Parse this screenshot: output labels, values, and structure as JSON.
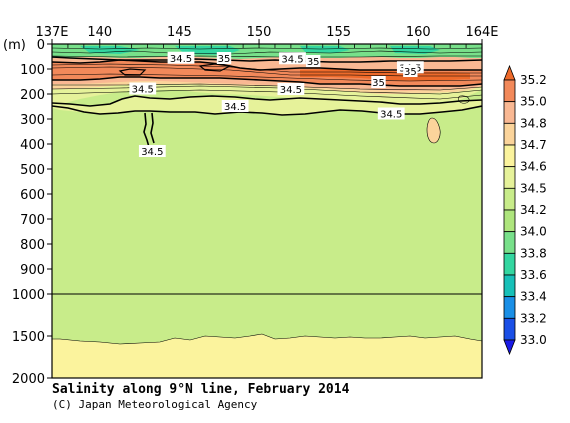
{
  "chart_data": {
    "type": "heatmap",
    "title": "Salinity along 9°N line, February 2014",
    "credit": "(C) Japan Meteorological Agency",
    "x_axis": {
      "range": [
        137,
        164
      ],
      "ticks": [
        {
          "value": 137,
          "label": "137E"
        },
        {
          "value": 140,
          "label": "140"
        },
        {
          "value": 145,
          "label": "145"
        },
        {
          "value": 150,
          "label": "150"
        },
        {
          "value": 155,
          "label": "155"
        },
        {
          "value": 160,
          "label": "160"
        },
        {
          "value": 164,
          "label": "164E"
        }
      ]
    },
    "y_axis": {
      "unit_label": "(m)",
      "range": [
        0,
        2000
      ],
      "break_at": 1000,
      "ticks": [
        {
          "value": 0,
          "label": "0"
        },
        {
          "value": 100,
          "label": "100"
        },
        {
          "value": 200,
          "label": "200"
        },
        {
          "value": 300,
          "label": "300"
        },
        {
          "value": 400,
          "label": "400"
        },
        {
          "value": 500,
          "label": "500"
        },
        {
          "value": 600,
          "label": "600"
        },
        {
          "value": 700,
          "label": "700"
        },
        {
          "value": 800,
          "label": "800"
        },
        {
          "value": 900,
          "label": "900"
        },
        {
          "value": 1000,
          "label": "1000"
        },
        {
          "value": 1500,
          "label": "1500"
        },
        {
          "value": 2000,
          "label": "2000"
        }
      ]
    },
    "colorbar": {
      "levels": [
        "35.2",
        "35.0",
        "34.8",
        "34.7",
        "34.6",
        "34.5",
        "34.2",
        "34.0",
        "33.8",
        "33.6",
        "33.4",
        "33.2",
        "33.0"
      ],
      "colors": [
        "#ee6a2a",
        "#f2895a",
        "#f9b893",
        "#fbd49b",
        "#fbf39d",
        "#e6f29a",
        "#c8ec8a",
        "#aee57d",
        "#78e08a",
        "#33d6a0",
        "#17c0b8",
        "#1a8fe6",
        "#1a4fe6",
        "#1a1ae6"
      ]
    },
    "contour_labels": [
      {
        "text": "34.5",
        "x": 145.1,
        "depth": 55
      },
      {
        "text": "35",
        "x": 147.8,
        "depth": 56
      },
      {
        "text": "34.5",
        "x": 152.1,
        "depth": 57
      },
      {
        "text": "35",
        "x": 153.4,
        "depth": 68
      },
      {
        "text": "34.5",
        "x": 159.5,
        "depth": 93
      },
      {
        "text": "35",
        "x": 159.5,
        "depth": 108
      },
      {
        "text": "35",
        "x": 157.5,
        "depth": 152
      },
      {
        "text": "34.5",
        "x": 142.7,
        "depth": 178
      },
      {
        "text": "34.5",
        "x": 152.0,
        "depth": 180
      },
      {
        "text": "34.5",
        "x": 148.5,
        "depth": 248
      },
      {
        "text": "34.5",
        "x": 158.3,
        "depth": 278
      },
      {
        "text": "34.5",
        "x": 143.3,
        "depth": 428
      }
    ]
  }
}
